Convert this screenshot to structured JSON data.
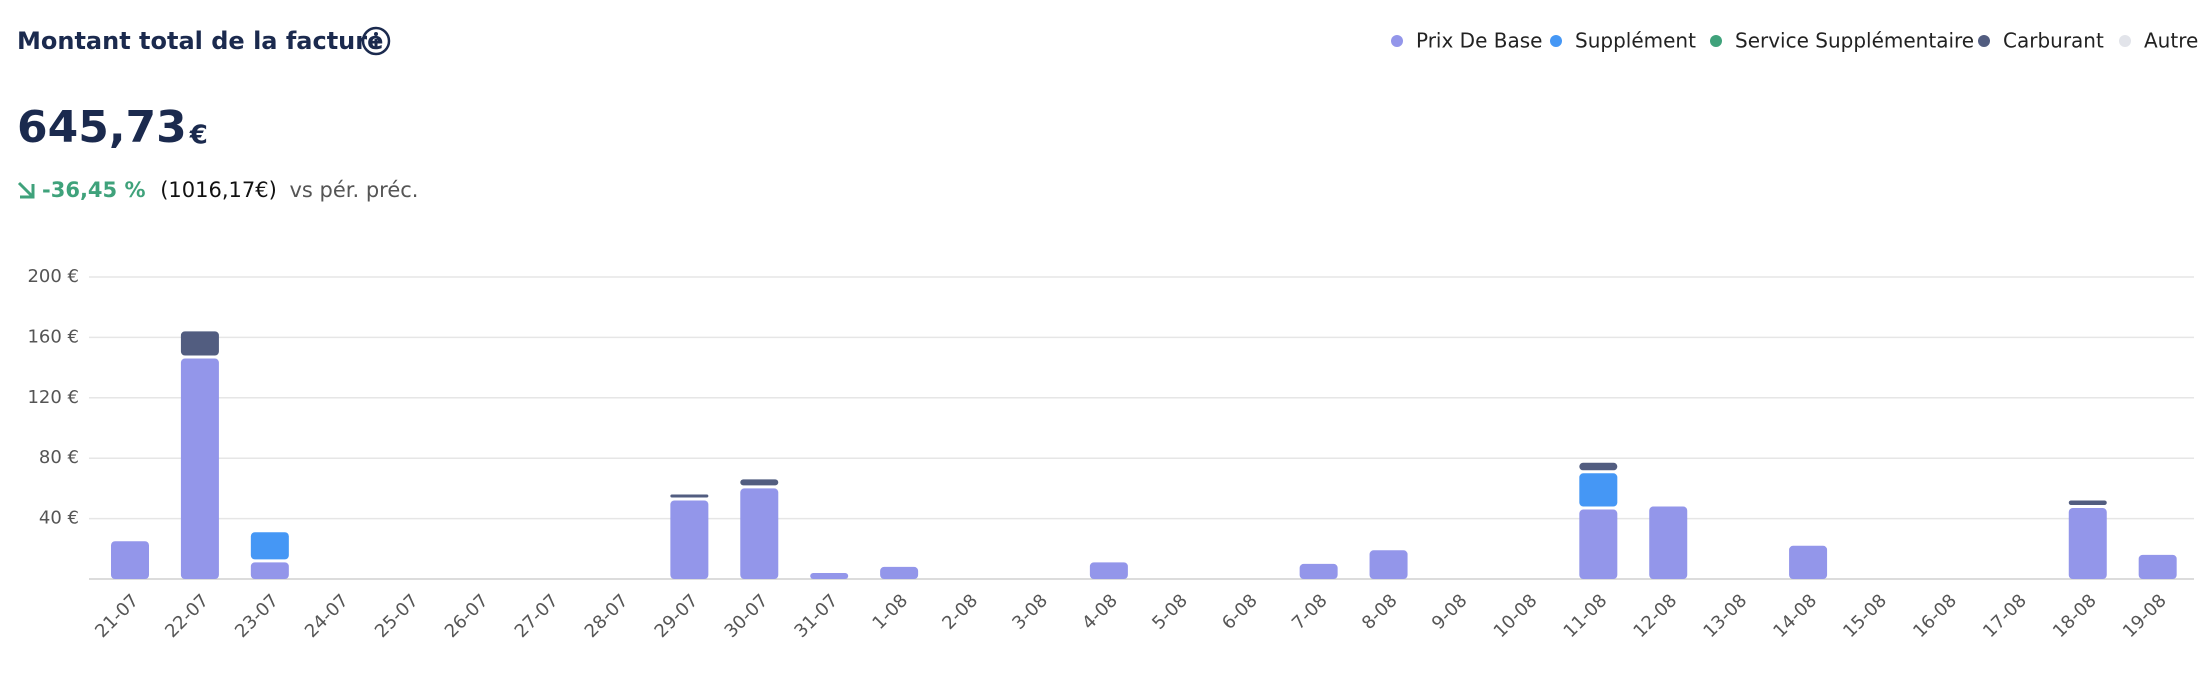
{
  "summary": {
    "value": "645,73",
    "currency": "€",
    "change": "-36,45 %",
    "previous": "(1016,17€)",
    "comparison": "vs pér. préc."
  },
  "chart_data": {
    "type": "bar",
    "stacked": true,
    "title": "Montant total de la facture",
    "categories": [
      "21-07",
      "22-07",
      "23-07",
      "24-07",
      "25-07",
      "26-07",
      "27-07",
      "28-07",
      "29-07",
      "30-07",
      "31-07",
      "1-08",
      "2-08",
      "3-08",
      "4-08",
      "5-08",
      "6-08",
      "7-08",
      "8-08",
      "9-08",
      "10-08",
      "11-08",
      "12-08",
      "13-08",
      "14-08",
      "15-08",
      "16-08",
      "17-08",
      "18-08",
      "19-08"
    ],
    "series": [
      {
        "name": "Prix De Base",
        "color": "#9396ea",
        "values": [
          25,
          146,
          11,
          0,
          0,
          0,
          0,
          0,
          52,
          60,
          4,
          8,
          0,
          0,
          11,
          0,
          0,
          10,
          19,
          0,
          0,
          46,
          48,
          0,
          22,
          0,
          0,
          0,
          47,
          16
        ]
      },
      {
        "name": "Supplément",
        "color": "#4597f5",
        "values": [
          0,
          0,
          20,
          0,
          0,
          0,
          0,
          0,
          0,
          0,
          0,
          0,
          0,
          0,
          0,
          0,
          0,
          0,
          0,
          0,
          0,
          24,
          0,
          0,
          0,
          0,
          0,
          0,
          0,
          0
        ]
      },
      {
        "name": "Service Supplémentaire",
        "color": "#3fa27b",
        "values": [
          0,
          0,
          0,
          0,
          0,
          0,
          0,
          0,
          0,
          0,
          0,
          0,
          0,
          0,
          0,
          0,
          0,
          0,
          0,
          0,
          0,
          0,
          0,
          0,
          2,
          0,
          0,
          0,
          0,
          0
        ]
      },
      {
        "name": "Carburant",
        "color": "#525d80",
        "values": [
          0,
          18,
          0,
          0,
          0,
          0,
          0,
          0,
          4,
          6,
          0,
          0,
          0,
          0,
          0,
          0,
          0,
          0,
          0,
          0,
          0,
          7,
          0,
          0,
          0,
          0,
          0,
          0,
          5,
          0
        ]
      },
      {
        "name": "Autre",
        "color": "#e2e4ea",
        "values": [
          0,
          0,
          0,
          0,
          0,
          0,
          0,
          0,
          0,
          0,
          0,
          0,
          0,
          0,
          0,
          0,
          0,
          0,
          0,
          0,
          0,
          0,
          2,
          0,
          0,
          0,
          0,
          0,
          0,
          1
        ]
      }
    ],
    "ylim": [
      0,
      200
    ],
    "yticks": [
      {
        "value": 40,
        "label": "40 €"
      },
      {
        "value": 80,
        "label": "80 €"
      },
      {
        "value": 120,
        "label": "120 €"
      },
      {
        "value": 160,
        "label": "160 €"
      },
      {
        "value": 200,
        "label": "200 €"
      }
    ],
    "grid": true,
    "legend": "top-right"
  }
}
